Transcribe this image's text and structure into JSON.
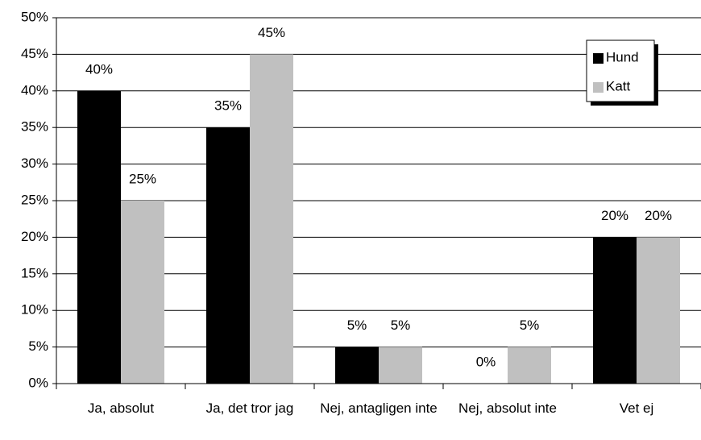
{
  "chart_data": {
    "type": "bar",
    "categories": [
      "Ja, absolut",
      "Ja, det tror jag",
      "Nej, antagligen inte",
      "Nej, absolut inte",
      "Vet ej"
    ],
    "series": [
      {
        "name": "Hund",
        "color": "#000000",
        "values": [
          40,
          35,
          5,
          0,
          20
        ],
        "value_labels": [
          "40%",
          "35%",
          "5%",
          "0%",
          "20%"
        ]
      },
      {
        "name": "Katt",
        "color": "#c0c0c0",
        "values": [
          25,
          45,
          5,
          5,
          20
        ],
        "value_labels": [
          "25%",
          "45%",
          "5%",
          "5%",
          "20%"
        ]
      }
    ],
    "ylim": [
      0,
      50
    ],
    "yticks": [
      {
        "value": 0,
        "label": "0%"
      },
      {
        "value": 5,
        "label": "5%"
      },
      {
        "value": 10,
        "label": "10%"
      },
      {
        "value": 15,
        "label": "15%"
      },
      {
        "value": 20,
        "label": "20%"
      },
      {
        "value": 25,
        "label": "25%"
      },
      {
        "value": 30,
        "label": "30%"
      },
      {
        "value": 35,
        "label": "35%"
      },
      {
        "value": 40,
        "label": "40%"
      },
      {
        "value": 45,
        "label": "45%"
      },
      {
        "value": 50,
        "label": "50%"
      }
    ],
    "grid": true,
    "legend": "top-right"
  }
}
